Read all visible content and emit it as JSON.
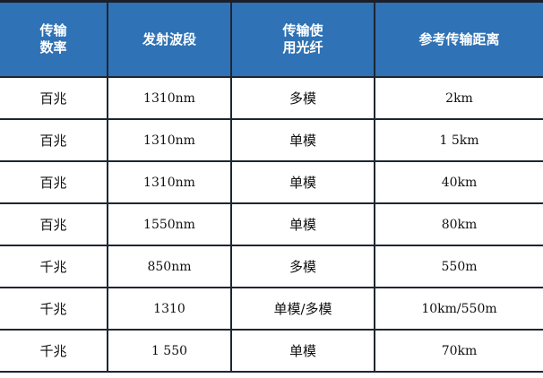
{
  "table": {
    "headers": [
      "传输\n数率",
      "发射波段",
      "传输使\n用光纤",
      "参考传输距离"
    ],
    "rows": [
      [
        "百兆",
        "1310nm",
        "多模",
        "2km"
      ],
      [
        "百兆",
        "1310nm",
        "单模",
        "1 5km"
      ],
      [
        "百兆",
        "1310nm",
        "单模",
        "40km"
      ],
      [
        "百兆",
        "1550nm",
        "单模",
        "80km"
      ],
      [
        "千兆",
        "850nm",
        "多模",
        "550m"
      ],
      [
        "千兆",
        "1310",
        "单模/多模",
        "10km/550m"
      ],
      [
        "千兆",
        "1 550",
        "单模",
        "70km"
      ]
    ]
  },
  "colors": {
    "header_bg": "#2f72b5",
    "header_text": "#ffffff",
    "border": "#1d2633"
  }
}
